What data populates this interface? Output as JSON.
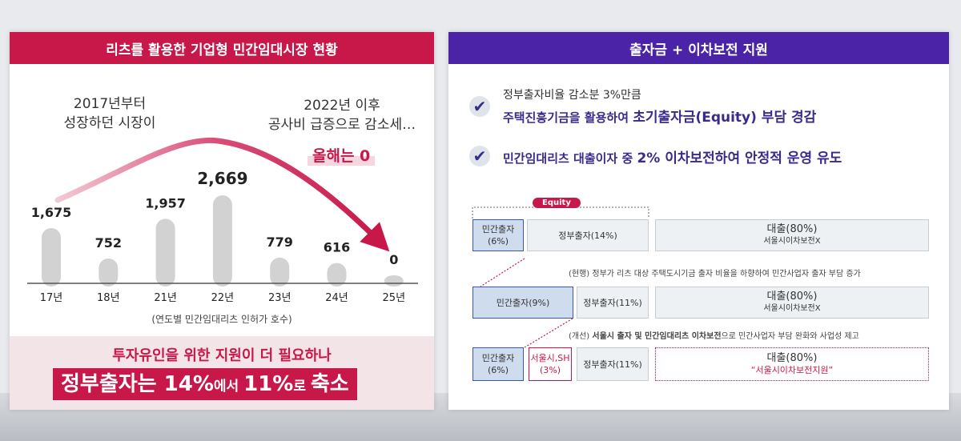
{
  "left": {
    "title": "리츠를 활용한 기업형 민간임대시장 현황",
    "caption_left": [
      "2017년부터",
      "성장하던 시장이"
    ],
    "caption_right": [
      "2022년 이후",
      "공사비 급증으로 감소세…"
    ],
    "highlight": "올해는 0",
    "chart_caption": "(연도별 민간임대리츠 인허가 호수)",
    "bottom_line1": "투자유인을 위한 지원이 더 필요하나",
    "bottom_a": "정부출자는 ",
    "bottom_b": "14%",
    "bottom_c": "에서 ",
    "bottom_d": "11%",
    "bottom_e": "로 ",
    "bottom_f": "축소"
  },
  "chart_data": {
    "type": "bar",
    "categories": [
      "17년",
      "18년",
      "21년",
      "22년",
      "23년",
      "24년",
      "25년"
    ],
    "values": [
      1675,
      752,
      1957,
      2669,
      779,
      616,
      0
    ],
    "value_labels": [
      "1,675",
      "752",
      "1,957",
      "2,669",
      "779",
      "616",
      "0"
    ],
    "title": "",
    "xlabel": "",
    "ylabel": "",
    "colors": {
      "bar": "#d2d2d2",
      "trend": "#c8184a"
    }
  },
  "right": {
    "title": "출자금 + 이차보전 지원",
    "bullet1_sub": "정부출자비율 감소분 3%만큼",
    "bullet1_main_a": "주택진흥기금을 활용하여 ",
    "bullet1_main_b": "초기출자금(Equity) 부담 경감",
    "bullet2_a": "민간임대리츠 대출이자 중 ",
    "bullet2_b": "2% 이차보전하여 안정적 운영 유도",
    "equity_tag": "Equity",
    "row1": {
      "private": "민간출자",
      "private_pct": "(6%)",
      "gov": "정부출자(14%)",
      "loan": "대출(80%)",
      "loan_sub": "서울시이차보전X"
    },
    "note1": "(현행) 정부가 리츠 대상 주택도시기금 출자 비율을 하향하여 민간사업자 출자 부담 증가",
    "row2": {
      "private": "민간출자(9%)",
      "gov": "정부출자(11%)",
      "loan": "대출(80%)",
      "loan_sub": "서울시이차보전X"
    },
    "note2_a": "(개선) ",
    "note2_b": "서울시 출자 및 민간임대리츠 이차보전",
    "note2_c": "으로 민간사업자 부담 완화와 사업성 제고",
    "row3": {
      "private": "민간출자",
      "private_pct": "(6%)",
      "seoul": "서울시,SH",
      "seoul_pct": "(3%)",
      "gov": "정부출자(11%)",
      "loan": "대출(80%)",
      "loan_sub": "“서울시이차보전지원”"
    },
    "colors": {
      "accent": "#4a23a6",
      "red": "#c8184a",
      "blue": "#3a5a98"
    }
  }
}
